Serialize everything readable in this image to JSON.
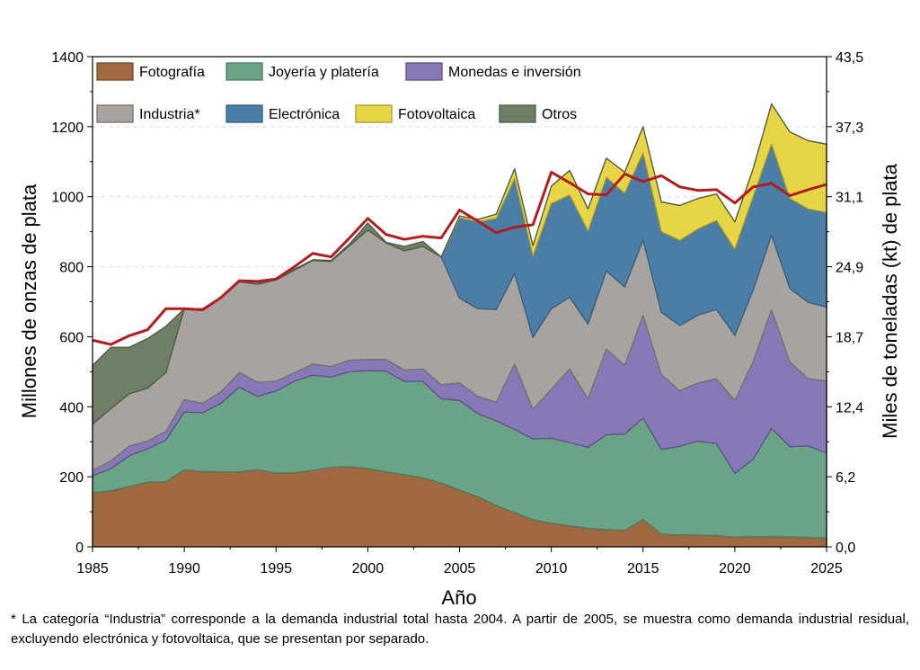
{
  "chart_data": {
    "type": "area",
    "stacked": true,
    "xlabel": "Año",
    "ylabel": "Millones de onzas de plata",
    "ylabel_right": "Miles de toneladas (kt) de plata",
    "xlim": [
      1985,
      2025
    ],
    "ylim": [
      0,
      1400
    ],
    "x_ticks": [
      "1985",
      "1990",
      "1995",
      "2000",
      "2005",
      "2010",
      "2015",
      "2020",
      "2025"
    ],
    "y_ticks": [
      "0",
      "200",
      "400",
      "600",
      "800",
      "1000",
      "1200",
      "1400"
    ],
    "y_ticks_right": [
      "0,0",
      "6,2",
      "12,4",
      "18,7",
      "24,9",
      "31,1",
      "37,3",
      "43,5"
    ],
    "grid": "faint dashed horizontal",
    "legend_placement": "top-left",
    "x": [
      1985,
      1986,
      1987,
      1988,
      1989,
      1990,
      1991,
      1992,
      1993,
      1994,
      1995,
      1996,
      1997,
      1998,
      1999,
      2000,
      2001,
      2002,
      2003,
      2004,
      2005,
      2006,
      2007,
      2008,
      2009,
      2010,
      2011,
      2012,
      2013,
      2014,
      2015,
      2016,
      2017,
      2018,
      2019,
      2020,
      2021,
      2022,
      2023,
      2024,
      2025
    ],
    "series": [
      {
        "name": "Fotografía",
        "color": "#A0693F",
        "edge": "#7A4A28",
        "values": [
          155,
          160,
          172,
          185,
          186,
          220,
          215,
          214,
          214,
          220,
          211,
          212,
          218,
          227,
          229,
          223,
          214,
          206,
          197,
          182,
          162,
          143,
          118,
          98,
          77,
          67,
          60,
          53,
          49,
          47,
          78,
          36,
          34,
          33,
          32,
          28,
          29,
          29,
          28,
          27,
          25
        ]
      },
      {
        "name": "Joyería y platería",
        "color": "#6BA386",
        "edge": "#4E7A60",
        "values": [
          48,
          63,
          88,
          95,
          119,
          165,
          168,
          196,
          242,
          210,
          234,
          261,
          272,
          258,
          271,
          280,
          288,
          266,
          276,
          241,
          256,
          237,
          242,
          237,
          231,
          243,
          238,
          231,
          271,
          275,
          290,
          242,
          253,
          269,
          263,
          182,
          221,
          309,
          258,
          261,
          243
        ]
      },
      {
        "name": "Monedas e inversión",
        "color": "#8878B8",
        "edge": "#5E5288",
        "values": [
          15,
          22,
          28,
          22,
          25,
          35,
          27,
          33,
          42,
          40,
          28,
          24,
          32,
          30,
          33,
          32,
          33,
          33,
          35,
          40,
          50,
          50,
          53,
          187,
          85,
          140,
          210,
          138,
          245,
          196,
          294,
          214,
          159,
          166,
          185,
          208,
          280,
          339,
          242,
          192,
          206
        ]
      },
      {
        "name": "Industria*",
        "color": "#A8A39E",
        "edge": "#77726E",
        "values": [
          132,
          150,
          149,
          151,
          168,
          260,
          270,
          270,
          259,
          280,
          289,
          293,
          296,
          300,
          327,
          370,
          333,
          340,
          350,
          365,
          242,
          250,
          265,
          258,
          205,
          230,
          205,
          214,
          223,
          224,
          214,
          178,
          186,
          194,
          198,
          186,
          203,
          213,
          210,
          218,
          211
        ]
      },
      {
        "name": "Electrónica",
        "color": "#4A7EA6",
        "edge": "#35607F",
        "values": [
          0,
          0,
          0,
          0,
          0,
          0,
          0,
          0,
          0,
          0,
          0,
          0,
          0,
          0,
          0,
          0,
          0,
          0,
          0,
          0,
          230,
          248,
          260,
          272,
          232,
          300,
          292,
          266,
          267,
          268,
          249,
          230,
          243,
          246,
          254,
          246,
          267,
          260,
          257,
          267,
          270
        ]
      },
      {
        "name": "Fotovoltaica",
        "color": "#E8D545",
        "edge": "#A89A30",
        "values": [
          0,
          0,
          0,
          0,
          0,
          0,
          0,
          0,
          0,
          0,
          0,
          0,
          0,
          0,
          0,
          0,
          0,
          0,
          0,
          0,
          5,
          7,
          12,
          28,
          30,
          50,
          70,
          63,
          55,
          60,
          75,
          85,
          100,
          87,
          76,
          78,
          80,
          115,
          190,
          195,
          195
        ]
      },
      {
        "name": "Otros",
        "color": "#6F7F66",
        "edge": "#4F5C48",
        "values": [
          168,
          175,
          133,
          142,
          132,
          0,
          0,
          0,
          0,
          2,
          3,
          3,
          2,
          3,
          5,
          20,
          2,
          13,
          14,
          0,
          0,
          0,
          0,
          0,
          0,
          0,
          0,
          0,
          0,
          0,
          0,
          0,
          0,
          0,
          0,
          0,
          0,
          0,
          0,
          0,
          0
        ]
      }
    ],
    "line": {
      "color": "#B01E23",
      "values": [
        590,
        578,
        603,
        620,
        680,
        680,
        677,
        712,
        760,
        758,
        765,
        800,
        838,
        828,
        882,
        938,
        892,
        878,
        887,
        882,
        962,
        930,
        897,
        913,
        920,
        1070,
        1040,
        1008,
        1005,
        1065,
        1043,
        1060,
        1028,
        1018,
        1020,
        982,
        1028,
        1038,
        1003,
        1020,
        1035
      ]
    }
  },
  "footnote": "* La categoría “Industria” corresponde a la demanda industrial total hasta 2004. A partir de 2005, se muestra como demanda industrial residual, excluyendo electrónica y fotovoltaica, que se presentan por separado."
}
